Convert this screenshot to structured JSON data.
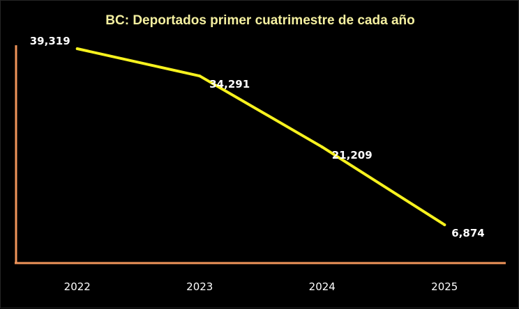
{
  "chart_data": {
    "type": "line",
    "title": "BC: Deportados primer cuatrimestre de cada año",
    "categories": [
      "2022",
      "2023",
      "2024",
      "2025"
    ],
    "series": [
      {
        "values": [
          39319,
          34291,
          21209,
          6874
        ]
      }
    ],
    "data_labels": [
      "39,319",
      "34,291",
      "21,209",
      "6,874"
    ],
    "xlabel": "",
    "ylabel": "",
    "grid": false,
    "legend": "none",
    "colors": {
      "background": "#000000",
      "line": "#f7f21e",
      "axis": "#f0955a",
      "title": "#f5f0a0",
      "labels": "#ffffff"
    }
  }
}
